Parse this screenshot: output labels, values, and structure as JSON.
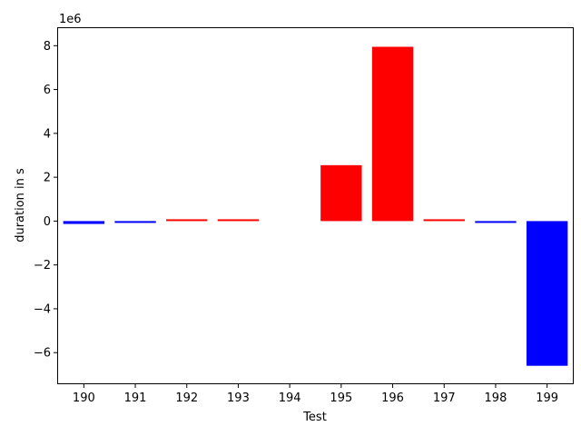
{
  "chart_data": {
    "type": "bar",
    "xlabel": "Test",
    "ylabel": "duration in s",
    "offset_text": "1e6",
    "categories": [
      "190",
      "191",
      "192",
      "193",
      "194",
      "195",
      "196",
      "197",
      "198",
      "199"
    ],
    "values": [
      -130000,
      -30000,
      80000,
      80000,
      0,
      2550000,
      7950000,
      80000,
      -30000,
      -6600000
    ],
    "colors": [
      "#0000ff",
      "#0000ff",
      "#ff0000",
      "#ff0000",
      "#ff0000",
      "#ff0000",
      "#ff0000",
      "#ff0000",
      "#0000ff",
      "#0000ff"
    ],
    "ylim": [
      -7400000,
      8800000
    ],
    "yticks": [
      -6000000,
      -4000000,
      -2000000,
      0,
      2000000,
      4000000,
      6000000,
      8000000
    ],
    "ytick_labels": [
      "−6",
      "−4",
      "−2",
      "0",
      "2",
      "4",
      "6",
      "8"
    ],
    "grid": false,
    "legend": "none"
  }
}
